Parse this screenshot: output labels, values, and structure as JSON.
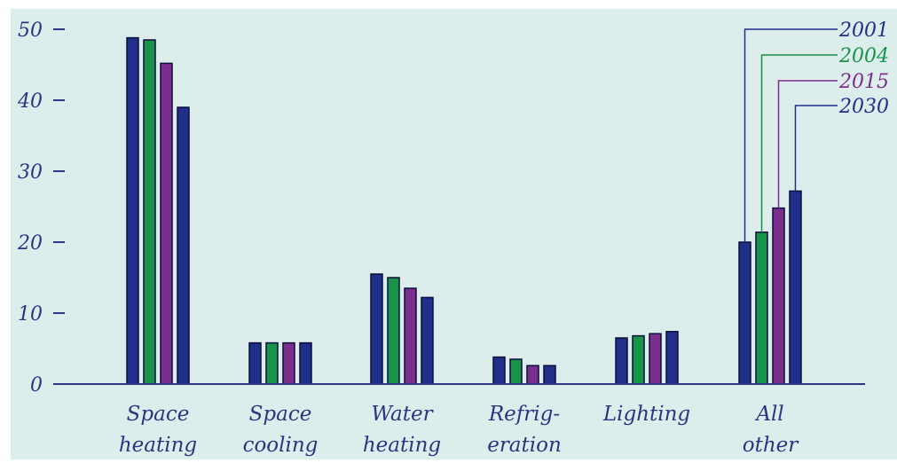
{
  "chart_data": {
    "type": "bar",
    "categories": [
      [
        "Space",
        "heating"
      ],
      [
        "Space",
        "cooling"
      ],
      [
        "Water",
        "heating"
      ],
      [
        "Refrig-",
        "eration"
      ],
      [
        "Lighting"
      ],
      [
        "All",
        "other"
      ]
    ],
    "series": [
      {
        "name": "2001",
        "color": "#1f2f8a",
        "values": [
          48.8,
          5.8,
          15.5,
          3.8,
          6.5,
          20.0
        ]
      },
      {
        "name": "2004",
        "color": "#17944a",
        "values": [
          48.5,
          5.8,
          15.0,
          3.5,
          6.8,
          21.4
        ]
      },
      {
        "name": "2015",
        "color": "#7a2f8c",
        "values": [
          45.2,
          5.8,
          13.5,
          2.6,
          7.1,
          24.8
        ]
      },
      {
        "name": "2030",
        "color": "#1f2f8a",
        "values": [
          39.0,
          5.8,
          12.2,
          2.6,
          7.4,
          27.2
        ]
      }
    ],
    "yticks": [
      "0",
      "10",
      "20",
      "30",
      "40",
      "50"
    ],
    "ylim": [
      0,
      50
    ],
    "grid": false,
    "legend_placement": "top-right",
    "title": "",
    "xlabel": "",
    "ylabel": ""
  },
  "colors": {
    "plot_background": "#dcedec",
    "axis": "#2b3580",
    "bar_outline": "#0b0f3a"
  }
}
